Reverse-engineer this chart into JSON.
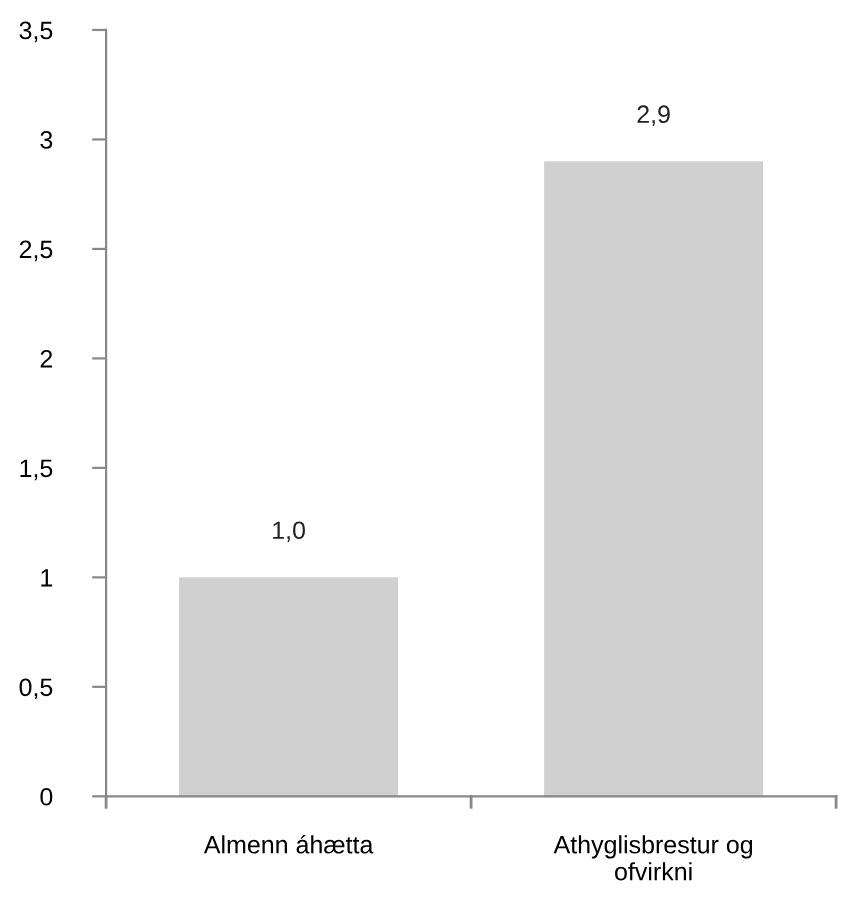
{
  "chart_data": {
    "type": "bar",
    "categories": [
      "Almenn áhætta",
      "Athyglisbrestur og\nofvirkni"
    ],
    "values": [
      1.0,
      2.9
    ],
    "color": "#d0d0d0",
    "value_labels": [
      "1,0",
      "2,9"
    ],
    "ylim": [
      0,
      3.5
    ],
    "yticks": [
      0,
      {
        "value": 0.5,
        "label": "0,5"
      },
      1,
      {
        "value": 1.5,
        "label": "1,5"
      },
      2,
      {
        "value": 2.5,
        "label": "2,5"
      },
      3,
      {
        "value": 3.5,
        "label": "3,5"
      }
    ],
    "grid": false,
    "legend": false
  }
}
